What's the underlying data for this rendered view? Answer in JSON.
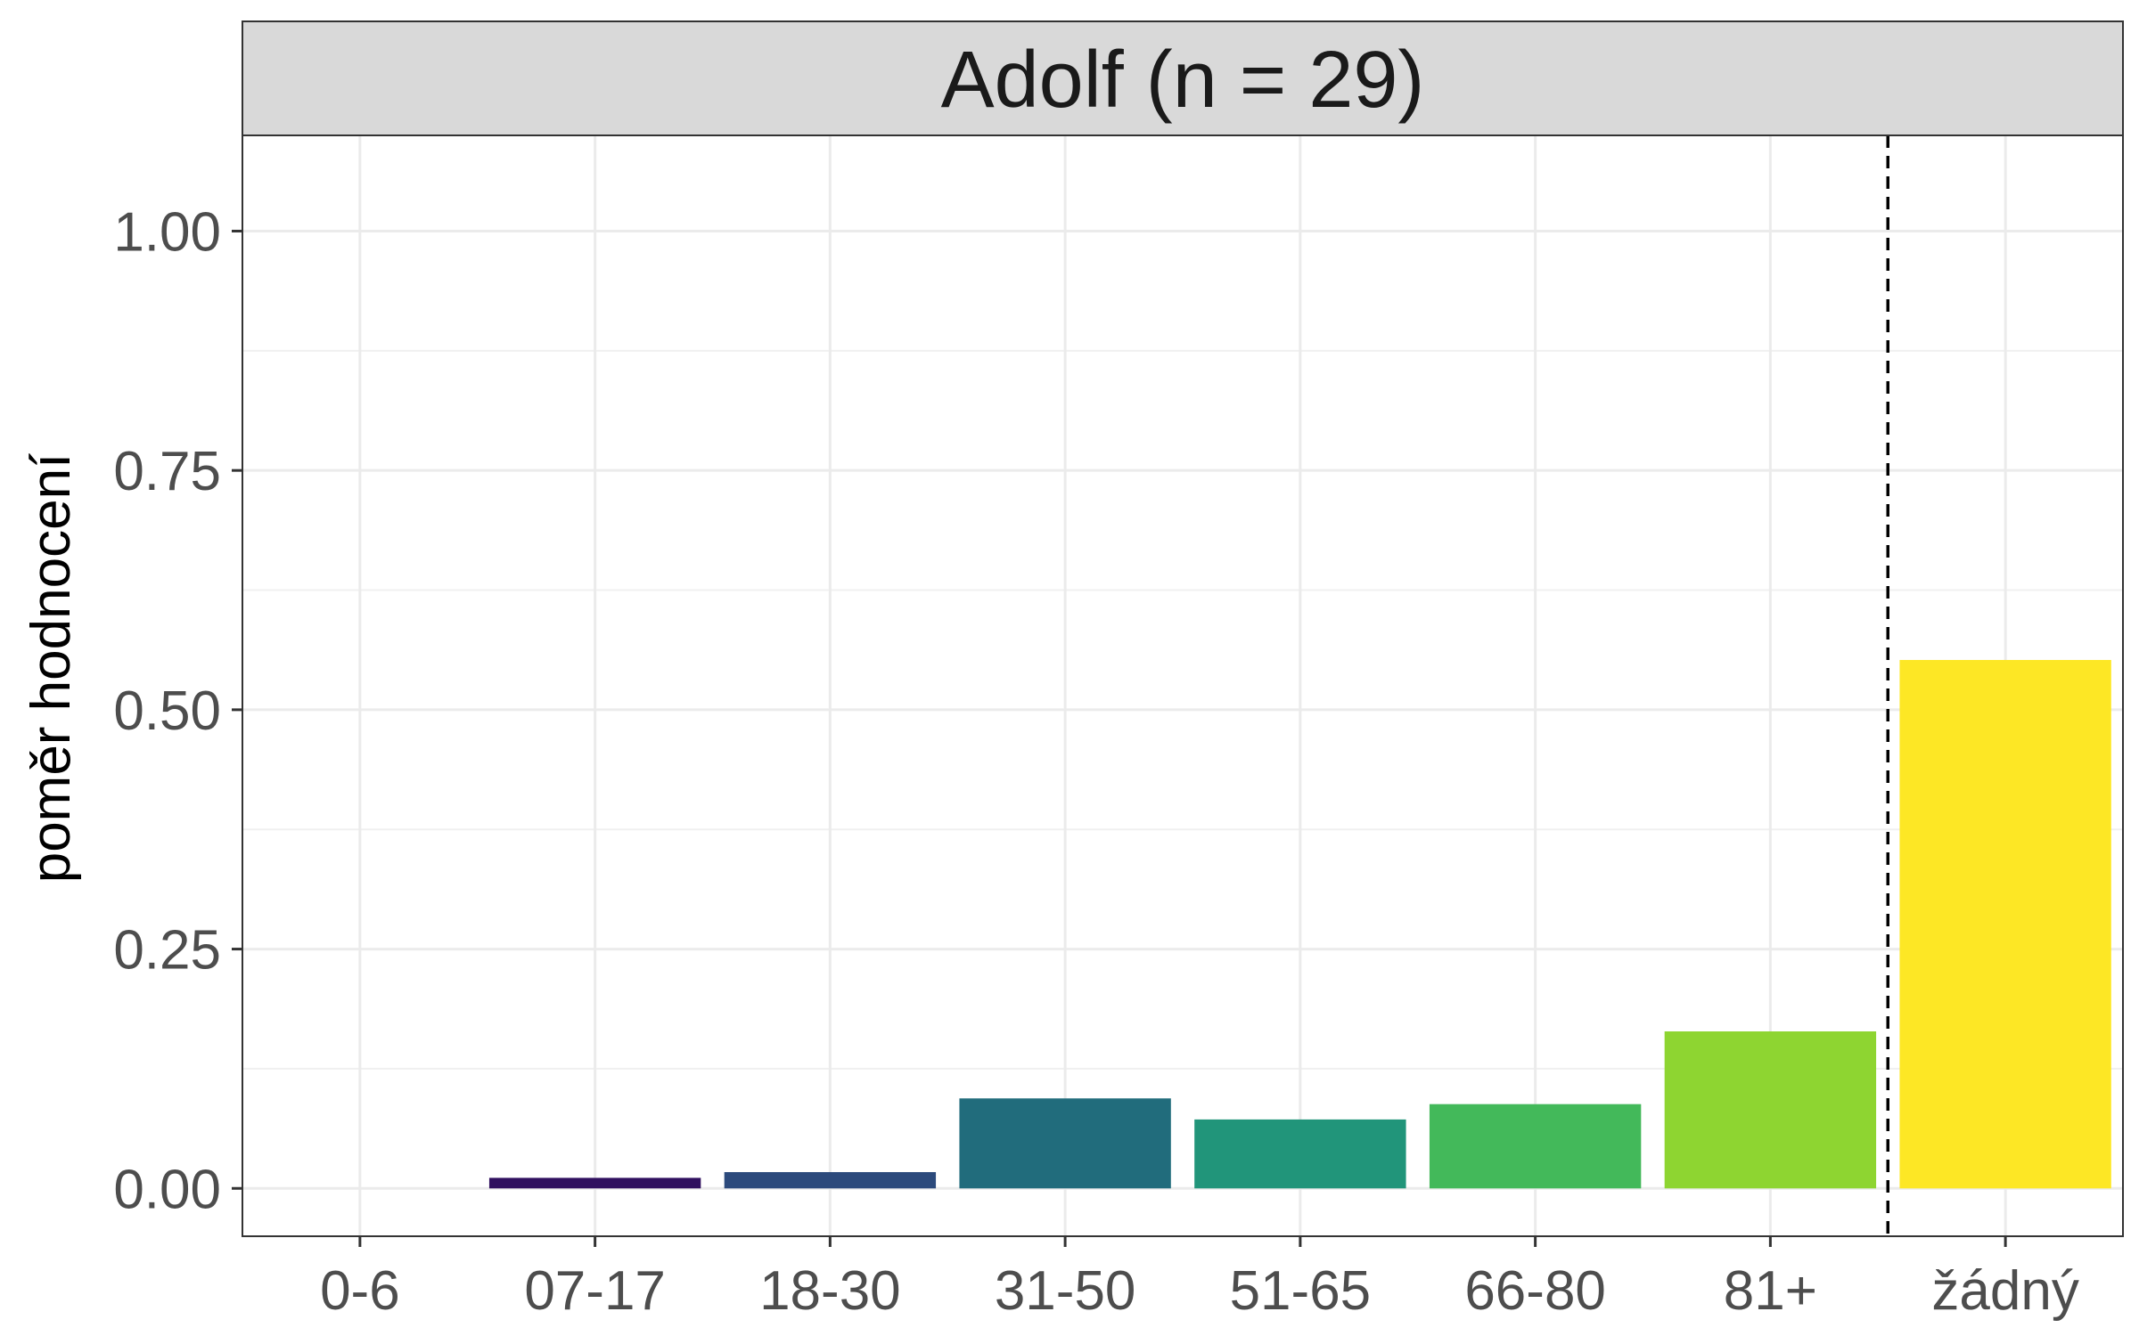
{
  "chart_data": {
    "type": "bar",
    "facet_title": "Adolf (n = 29)",
    "ylabel": "poměr hodnocení",
    "xlabel": "",
    "categories": [
      "0-6",
      "07-17",
      "18-30",
      "31-50",
      "51-65",
      "66-80",
      "81+",
      "žádný"
    ],
    "values": [
      0.0,
      0.011,
      0.017,
      0.094,
      0.072,
      0.088,
      0.164,
      0.552
    ],
    "colors": [
      "#440154",
      "#30105f",
      "#2c4a7c",
      "#216c7c",
      "#21957a",
      "#43b95a",
      "#8ed531",
      "#fde725"
    ],
    "ylim": [
      -0.05,
      1.1
    ],
    "yticks": [
      0.0,
      0.25,
      0.5,
      0.75,
      1.0
    ],
    "ytick_labels": [
      "0.00",
      "0.25",
      "0.50",
      "0.75",
      "1.00"
    ],
    "separator_after_category": "81+",
    "grid": true,
    "legend": "none"
  }
}
